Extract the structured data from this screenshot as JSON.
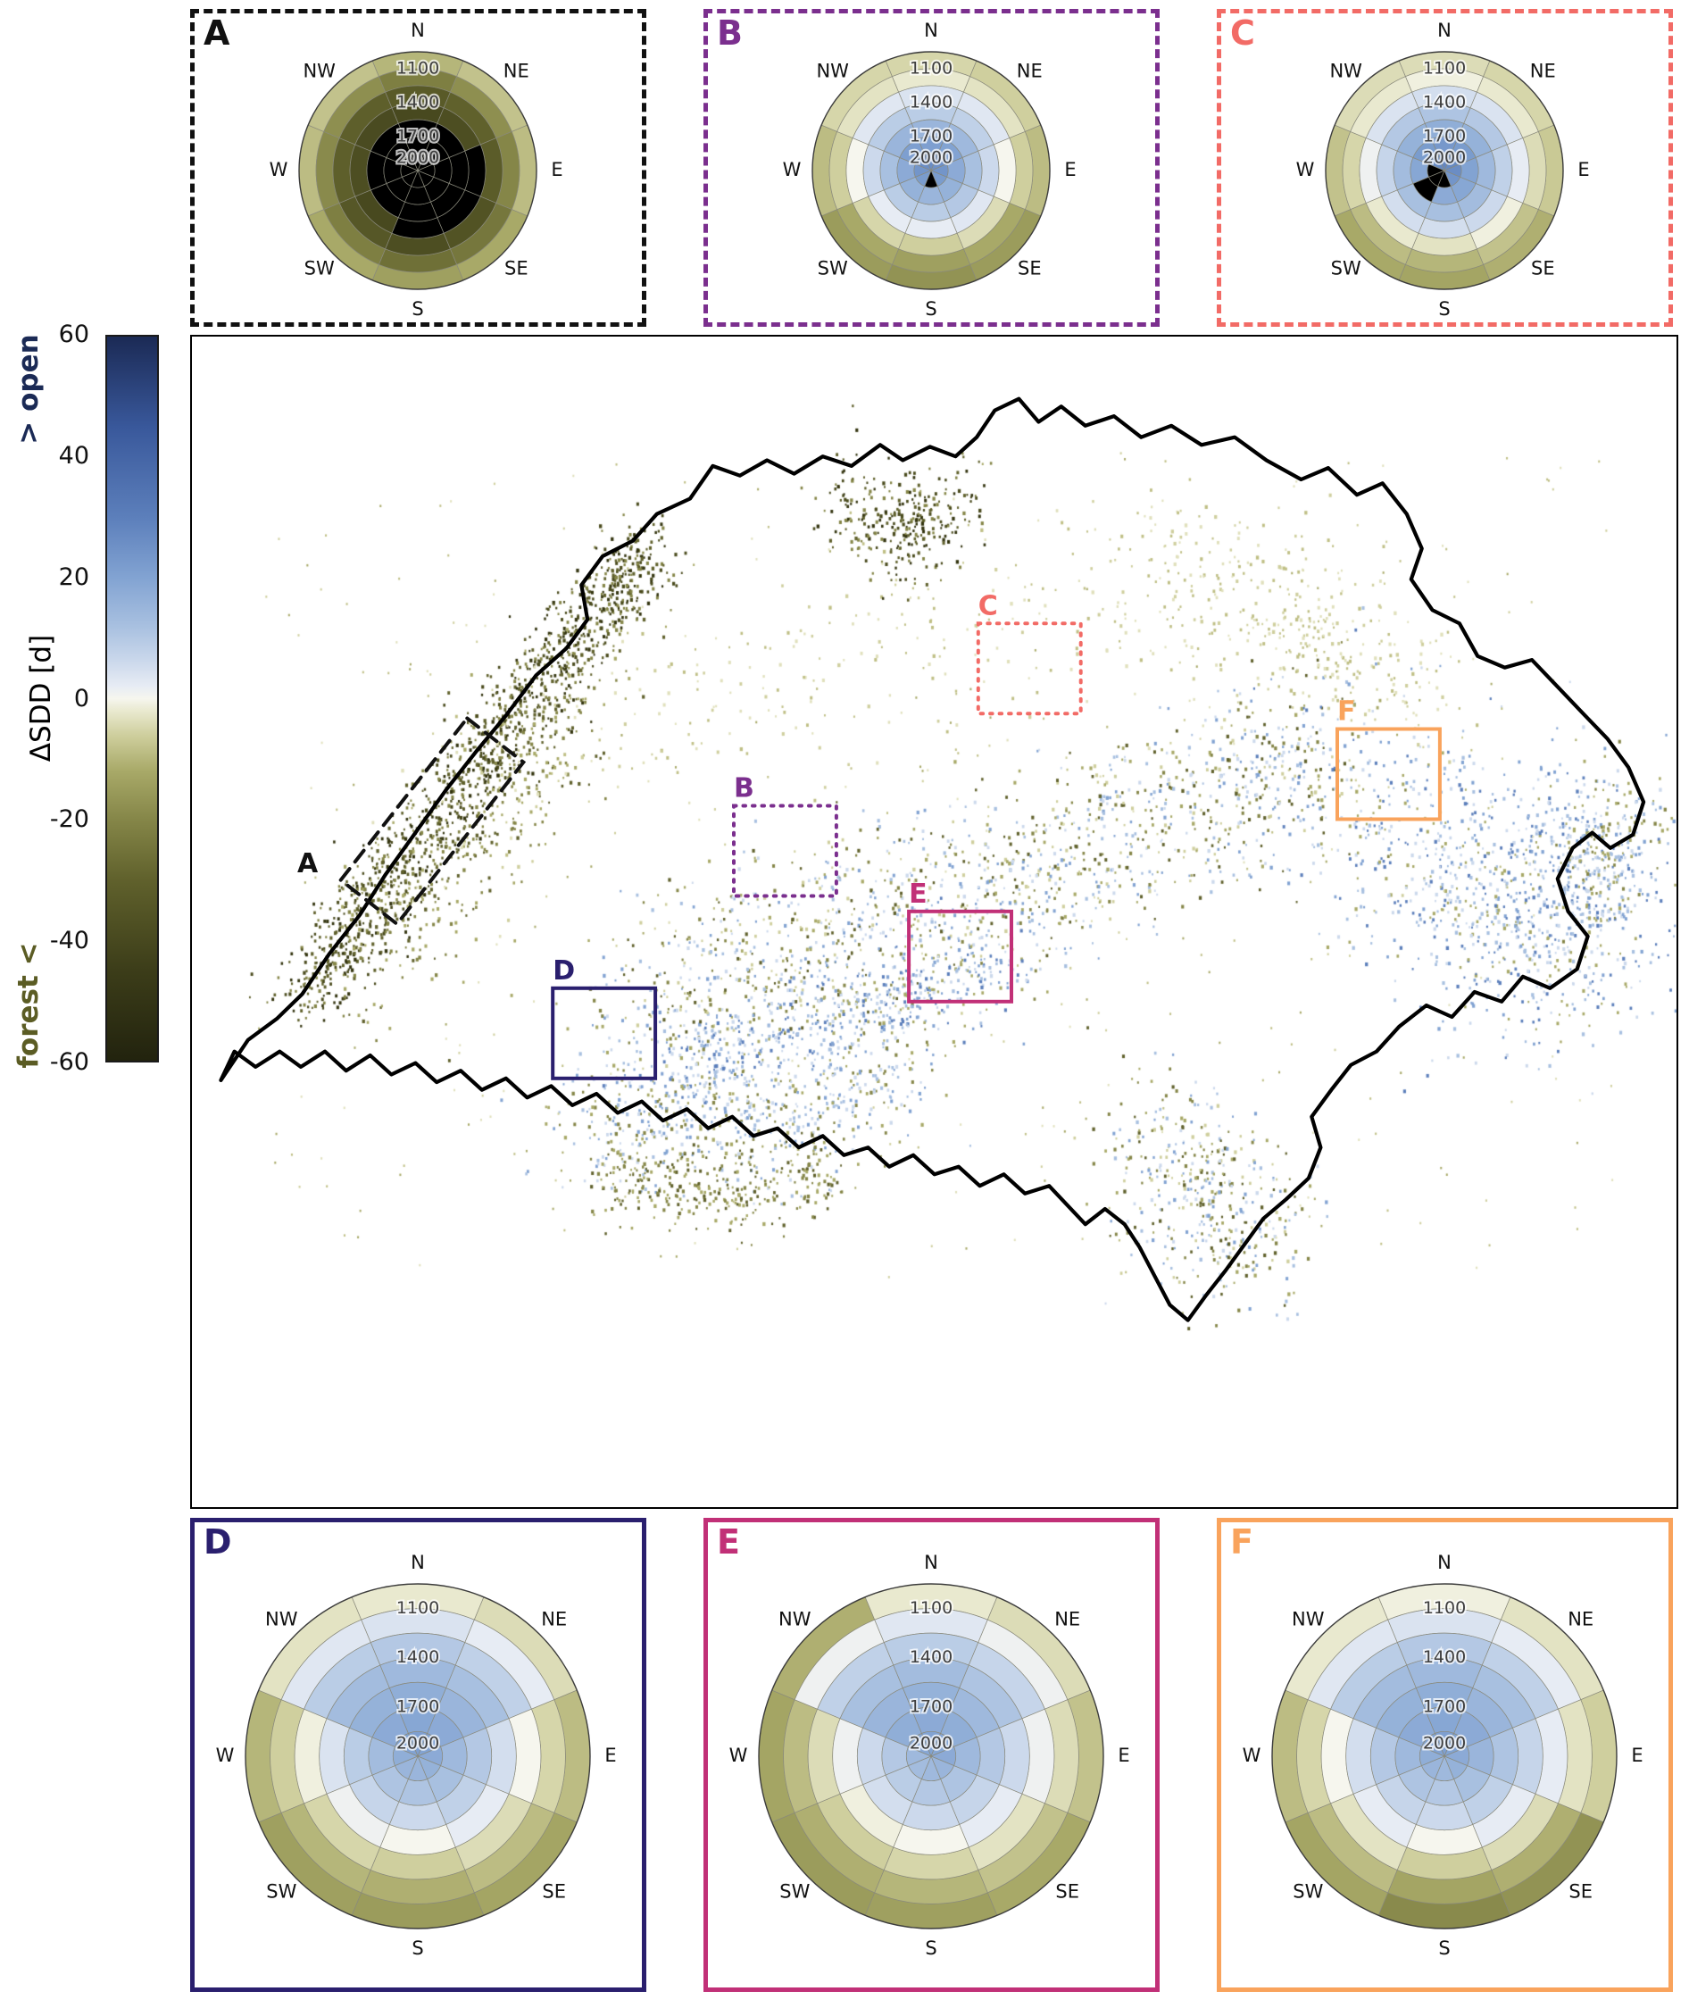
{
  "figure": {
    "background": "#ffffff"
  },
  "colorbar": {
    "title": "ΔSDD [d]",
    "top_label": "> open",
    "bottom_label": "forest <",
    "top_label_color": "#1b2a55",
    "bottom_label_color": "#5b5c24",
    "ticks": [
      60,
      40,
      20,
      0,
      -20,
      -40,
      -60
    ],
    "range": [
      -60,
      60
    ],
    "no_data_color": "#000000",
    "colormap_stops": [
      [
        -60,
        "#22230e"
      ],
      [
        -45,
        "#3c3d19"
      ],
      [
        -30,
        "#60612c"
      ],
      [
        -20,
        "#858648"
      ],
      [
        -12,
        "#a8a968"
      ],
      [
        -6,
        "#cfcf9e"
      ],
      [
        -2,
        "#e9e9cf"
      ],
      [
        0,
        "#f6f6ee"
      ],
      [
        2,
        "#e7ecf4"
      ],
      [
        6,
        "#ccd9ec"
      ],
      [
        12,
        "#a8c0e0"
      ],
      [
        20,
        "#82a3d2"
      ],
      [
        30,
        "#5c7fbb"
      ],
      [
        45,
        "#39589b"
      ],
      [
        60,
        "#1b2a55"
      ]
    ]
  },
  "map": {
    "regions": [
      {
        "id": "A",
        "label": "A",
        "color": "#111111",
        "box_style": "dashed"
      },
      {
        "id": "B",
        "label": "B",
        "color": "#7b2f8e",
        "box_style": "dotted"
      },
      {
        "id": "C",
        "label": "C",
        "color": "#f26b66",
        "box_style": "dotted"
      },
      {
        "id": "D",
        "label": "D",
        "color": "#2a1f6e",
        "box_style": "solid"
      },
      {
        "id": "E",
        "label": "E",
        "color": "#c13077",
        "box_style": "solid"
      },
      {
        "id": "F",
        "label": "F",
        "color": "#f9a35c",
        "box_style": "solid"
      }
    ]
  },
  "chart_data": [
    {
      "id": "A",
      "title": "A",
      "type": "heatmap",
      "subtype": "polar_aspect_elevation",
      "frame_color": "#111111",
      "frame_style": "dashed",
      "aspect_sectors": [
        "N",
        "NE",
        "E",
        "SE",
        "S",
        "SW",
        "W",
        "NW"
      ],
      "elevation_band_edges_m": [
        950,
        1100,
        1250,
        1400,
        1550,
        1700,
        1850,
        2000
      ],
      "ring_labels": [
        "1100",
        "1400",
        "1700",
        "2000"
      ],
      "value_units": "days",
      "no_data": "black",
      "values_delta_sdd_days": [
        [
          -10,
          -22,
          -33,
          -40,
          null,
          null,
          null
        ],
        [
          -8,
          -18,
          -30,
          -38,
          null,
          null,
          null
        ],
        [
          -9,
          -20,
          -32,
          null,
          null,
          null,
          null
        ],
        [
          -12,
          -24,
          -36,
          null,
          null,
          null,
          null
        ],
        [
          -14,
          -26,
          -38,
          null,
          null,
          null,
          null
        ],
        [
          -12,
          -22,
          -34,
          -40,
          null,
          null,
          null
        ],
        [
          -9,
          -19,
          -31,
          -38,
          null,
          null,
          null
        ],
        [
          -8,
          -18,
          -31,
          -39,
          null,
          null,
          null
        ]
      ]
    },
    {
      "id": "B",
      "title": "B",
      "type": "heatmap",
      "subtype": "polar_aspect_elevation",
      "frame_color": "#7b2f8e",
      "frame_style": "dashed",
      "aspect_sectors": [
        "N",
        "NE",
        "E",
        "SE",
        "S",
        "SW",
        "W",
        "NW"
      ],
      "elevation_band_edges_m": [
        950,
        1100,
        1250,
        1400,
        1550,
        1700,
        1850,
        2000
      ],
      "ring_labels": [
        "1100",
        "1400",
        "1700",
        "2000"
      ],
      "value_units": "days",
      "no_data": "black",
      "values_delta_sdd_days": [
        [
          -5,
          -2,
          4,
          9,
          15,
          21,
          26
        ],
        [
          -6,
          -3,
          3,
          8,
          14,
          20,
          25
        ],
        [
          -9,
          -6,
          0,
          6,
          12,
          18,
          24
        ],
        [
          -15,
          -12,
          -4,
          3,
          10,
          16,
          22
        ],
        [
          -17,
          -14,
          -6,
          2,
          9,
          15,
          null
        ],
        [
          -15,
          -12,
          -5,
          2,
          9,
          16,
          22
        ],
        [
          -9,
          -6,
          0,
          6,
          12,
          18,
          24
        ],
        [
          -5,
          -3,
          3,
          9,
          15,
          21,
          26
        ]
      ]
    },
    {
      "id": "C",
      "title": "C",
      "type": "heatmap",
      "subtype": "polar_aspect_elevation",
      "frame_color": "#f26b66",
      "frame_style": "dashed",
      "aspect_sectors": [
        "N",
        "NE",
        "E",
        "SE",
        "S",
        "SW",
        "W",
        "NW"
      ],
      "elevation_band_edges_m": [
        950,
        1100,
        1250,
        1400,
        1550,
        1700,
        1850,
        2000
      ],
      "ring_labels": [
        "1100",
        "1400",
        "1700",
        "2000"
      ],
      "value_units": "days",
      "no_data": "black",
      "values_delta_sdd_days": [
        [
          -4,
          -1,
          5,
          11,
          17,
          23,
          28
        ],
        [
          -5,
          -2,
          4,
          10,
          16,
          22,
          27
        ],
        [
          -7,
          -4,
          2,
          8,
          14,
          20,
          26
        ],
        [
          -11,
          -8,
          -1,
          6,
          13,
          19,
          24
        ],
        [
          -13,
          -10,
          -3,
          5,
          12,
          18,
          null
        ],
        [
          -12,
          -9,
          -2,
          5,
          12,
          null,
          null
        ],
        [
          -8,
          -5,
          1,
          7,
          13,
          19,
          null
        ],
        [
          -4,
          -2,
          4,
          10,
          16,
          22,
          27
        ]
      ]
    },
    {
      "id": "D",
      "title": "D",
      "type": "heatmap",
      "subtype": "polar_aspect_elevation",
      "frame_color": "#2a1f6e",
      "frame_style": "solid",
      "aspect_sectors": [
        "N",
        "NE",
        "E",
        "SE",
        "S",
        "SW",
        "W",
        "NW"
      ],
      "elevation_band_edges_m": [
        950,
        1100,
        1250,
        1400,
        1550,
        1700,
        1850,
        2000
      ],
      "ring_labels": [
        "1100",
        "1400",
        "1700",
        "2000"
      ],
      "value_units": "days",
      "no_data": "black",
      "values_delta_sdd_days": [
        [
          -2,
          4,
          10,
          14,
          17,
          19,
          21
        ],
        [
          -4,
          2,
          8,
          12,
          15,
          18,
          20
        ],
        [
          -9,
          -5,
          0,
          5,
          10,
          14,
          18
        ],
        [
          -13,
          -9,
          -4,
          2,
          8,
          12,
          16
        ],
        [
          -15,
          -11,
          -6,
          0,
          6,
          11,
          15
        ],
        [
          -14,
          -10,
          -5,
          1,
          7,
          11,
          15
        ],
        [
          -10,
          -6,
          -1,
          4,
          9,
          13,
          17
        ],
        [
          -3,
          3,
          9,
          13,
          16,
          18,
          20
        ]
      ]
    },
    {
      "id": "E",
      "title": "E",
      "type": "heatmap",
      "subtype": "polar_aspect_elevation",
      "frame_color": "#c13077",
      "frame_style": "solid",
      "aspect_sectors": [
        "N",
        "NE",
        "E",
        "SE",
        "S",
        "SW",
        "W",
        "NW"
      ],
      "elevation_band_edges_m": [
        950,
        1100,
        1250,
        1400,
        1550,
        1700,
        1850,
        2000
      ],
      "ring_labels": [
        "1100",
        "1400",
        "1700",
        "2000"
      ],
      "value_units": "days",
      "no_data": "black",
      "values_delta_sdd_days": [
        [
          -2,
          3,
          9,
          13,
          16,
          18,
          20
        ],
        [
          -4,
          1,
          7,
          11,
          14,
          17,
          19
        ],
        [
          -8,
          -4,
          1,
          6,
          10,
          14,
          18
        ],
        [
          -12,
          -8,
          -3,
          2,
          7,
          11,
          15
        ],
        [
          -14,
          -10,
          -5,
          0,
          6,
          10,
          14
        ],
        [
          -15,
          -11,
          -6,
          -1,
          5,
          9,
          13
        ],
        [
          -13,
          -9,
          -4,
          1,
          6,
          10,
          14
        ],
        [
          -11,
          1,
          8,
          12,
          15,
          17,
          19
        ]
      ]
    },
    {
      "id": "F",
      "title": "F",
      "type": "heatmap",
      "subtype": "polar_aspect_elevation",
      "frame_color": "#f9a35c",
      "frame_style": "solid",
      "aspect_sectors": [
        "N",
        "NE",
        "E",
        "SE",
        "S",
        "SW",
        "W",
        "NW"
      ],
      "elevation_band_edges_m": [
        950,
        1100,
        1250,
        1400,
        1550,
        1700,
        1850,
        2000
      ],
      "ring_labels": [
        "1100",
        "1400",
        "1700",
        "2000"
      ],
      "value_units": "days",
      "no_data": "black",
      "values_delta_sdd_days": [
        [
          -1,
          4,
          10,
          14,
          17,
          19,
          21
        ],
        [
          -3,
          2,
          8,
          12,
          15,
          18,
          20
        ],
        [
          -6,
          -3,
          2,
          7,
          11,
          15,
          18
        ],
        [
          -17,
          -11,
          -4,
          2,
          8,
          12,
          16
        ],
        [
          -19,
          -13,
          -6,
          0,
          6,
          10,
          14
        ],
        [
          -13,
          -9,
          -3,
          2,
          7,
          11,
          15
        ],
        [
          -9,
          -5,
          0,
          5,
          10,
          14,
          17
        ],
        [
          -2,
          3,
          9,
          13,
          16,
          18,
          20
        ]
      ]
    }
  ]
}
